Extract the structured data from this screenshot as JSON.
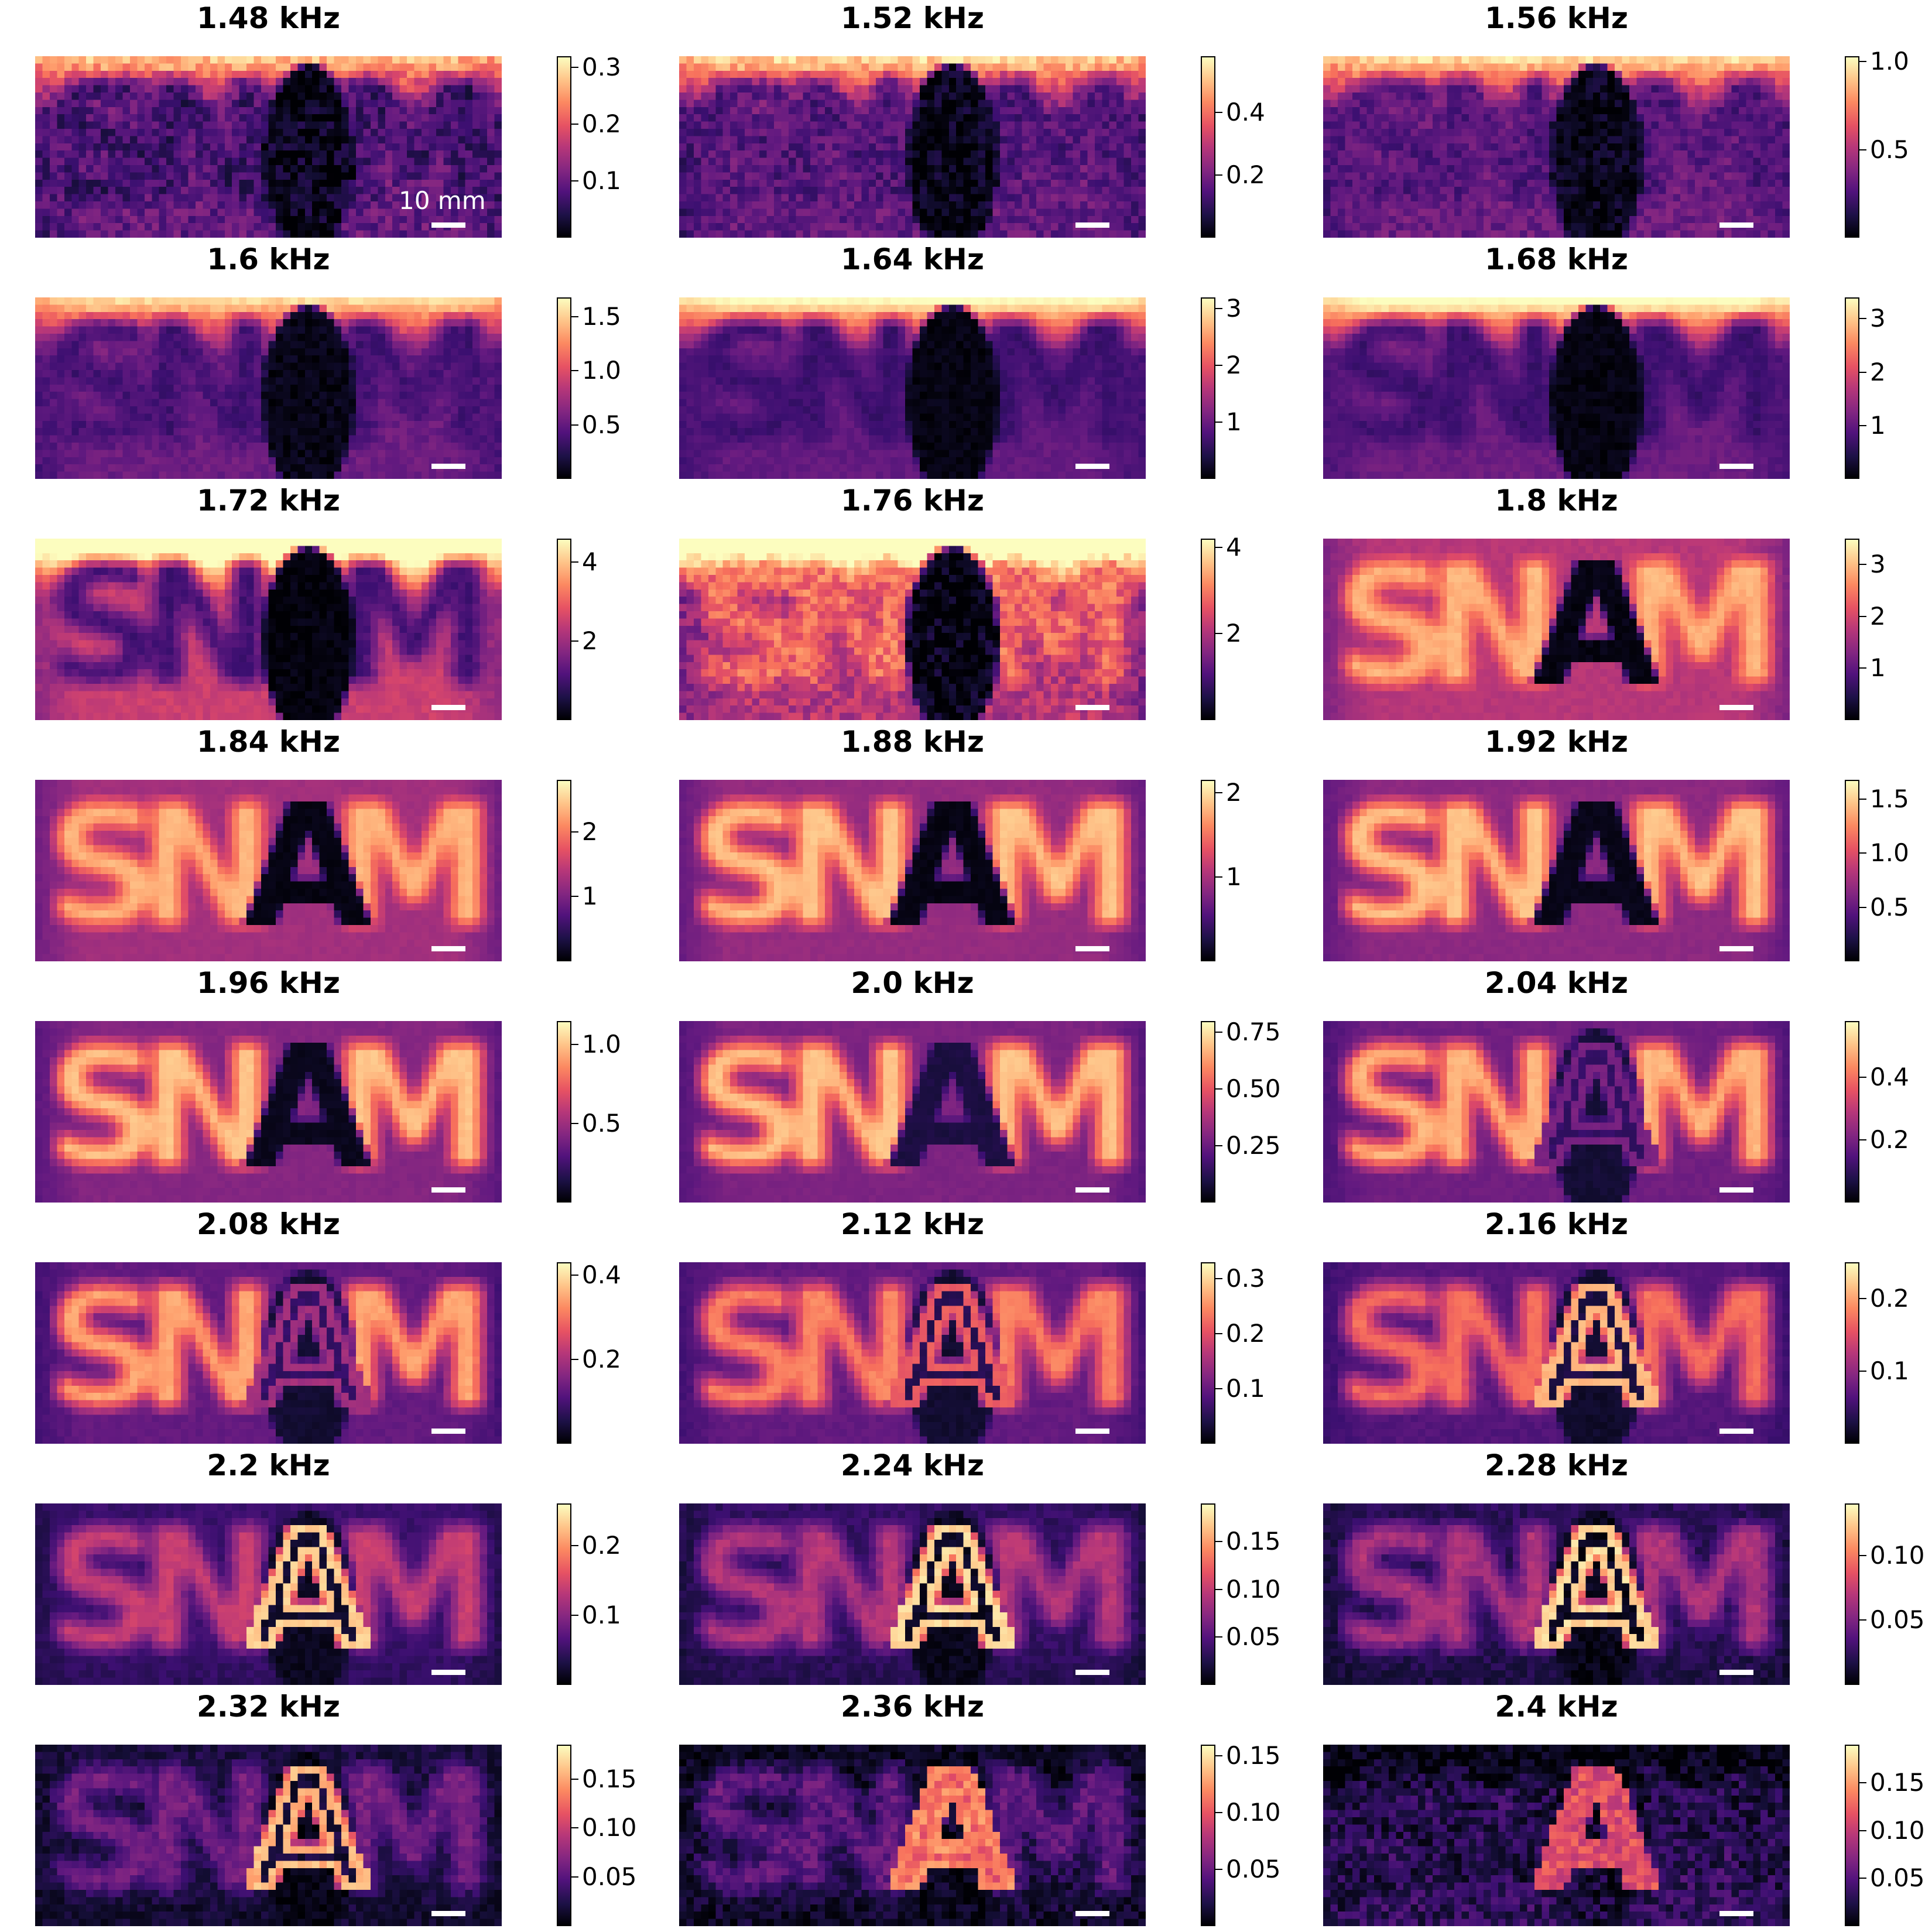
{
  "chart_data": {
    "type": "heatmap",
    "colormap": "magma",
    "grid": false,
    "scale_bar_label": "10 mm",
    "letters": [
      "S",
      "N",
      "A",
      "M"
    ],
    "panels": [
      {
        "title": "1.48 kHz",
        "vmax": 0.32,
        "ticks": [
          {
            "v": 0.1,
            "label": "0.1"
          },
          {
            "v": 0.2,
            "label": "0.2"
          },
          {
            "v": 0.3,
            "label": "0.3"
          }
        ],
        "letters_level": 0.2,
        "a_level": 0.05,
        "a_edge": 0.0,
        "bg_level": 0.3,
        "top_glow": 0.55,
        "bottom_dark": 0.0,
        "noise": 0.35,
        "blur": 1.0,
        "a_shape": "blob",
        "scale_label_visible": true
      },
      {
        "title": "1.52 kHz",
        "vmax": 0.58,
        "ticks": [
          {
            "v": 0.2,
            "label": "0.2"
          },
          {
            "v": 0.4,
            "label": "0.4"
          }
        ],
        "letters_level": 0.25,
        "a_level": 0.05,
        "a_edge": 0.0,
        "bg_level": 0.3,
        "top_glow": 0.6,
        "bottom_dark": 0.0,
        "noise": 0.3,
        "blur": 1.0,
        "a_shape": "blob"
      },
      {
        "title": "1.56 kHz",
        "vmax": 1.03,
        "ticks": [
          {
            "v": 0.5,
            "label": "0.5"
          },
          {
            "v": 1.0,
            "label": "1.0"
          }
        ],
        "letters_level": 0.25,
        "a_level": 0.05,
        "a_edge": 0.0,
        "bg_level": 0.32,
        "top_glow": 0.6,
        "bottom_dark": 0.0,
        "noise": 0.25,
        "blur": 0.9,
        "a_shape": "blob"
      },
      {
        "title": "1.6 kHz",
        "vmax": 1.68,
        "ticks": [
          {
            "v": 0.5,
            "label": "0.5"
          },
          {
            "v": 1.0,
            "label": "1.0"
          },
          {
            "v": 1.5,
            "label": "1.5"
          }
        ],
        "letters_level": 0.22,
        "a_level": 0.04,
        "a_edge": 0.0,
        "bg_level": 0.32,
        "top_glow": 0.6,
        "bottom_dark": 0.0,
        "noise": 0.15,
        "blur": 0.85,
        "a_shape": "blob"
      },
      {
        "title": "1.64 kHz",
        "vmax": 3.2,
        "ticks": [
          {
            "v": 1,
            "label": "1"
          },
          {
            "v": 2,
            "label": "2"
          },
          {
            "v": 3,
            "label": "3"
          }
        ],
        "letters_level": 0.2,
        "a_level": 0.03,
        "a_edge": 0.0,
        "bg_level": 0.3,
        "top_glow": 0.7,
        "bottom_dark": 0.0,
        "noise": 0.1,
        "blur": 0.8,
        "a_shape": "blob"
      },
      {
        "title": "1.68 kHz",
        "vmax": 3.4,
        "ticks": [
          {
            "v": 1,
            "label": "1"
          },
          {
            "v": 2,
            "label": "2"
          },
          {
            "v": 3,
            "label": "3"
          }
        ],
        "letters_level": 0.2,
        "a_level": 0.03,
        "a_edge": 0.0,
        "bg_level": 0.32,
        "top_glow": 0.7,
        "bottom_dark": 0.0,
        "noise": 0.1,
        "blur": 0.8,
        "a_shape": "blob"
      },
      {
        "title": "1.72 kHz",
        "vmax": 4.6,
        "ticks": [
          {
            "v": 2,
            "label": "2"
          },
          {
            "v": 4,
            "label": "4"
          }
        ],
        "letters_level": 0.22,
        "a_level": 0.02,
        "a_edge": 0.0,
        "bg_level": 0.55,
        "top_glow": 0.75,
        "bottom_dark": 0.0,
        "noise": 0.12,
        "blur": 0.75,
        "a_shape": "blob"
      },
      {
        "title": "1.76 kHz",
        "vmax": 4.2,
        "ticks": [
          {
            "v": 2,
            "label": "2"
          },
          {
            "v": 4,
            "label": "4"
          }
        ],
        "letters_level": 0.7,
        "a_level": 0.03,
        "a_edge": 0.0,
        "bg_level": 0.5,
        "top_glow": 0.8,
        "bottom_dark": 0.0,
        "noise": 0.35,
        "blur": 0.7,
        "a_shape": "blob"
      },
      {
        "title": "1.8 kHz",
        "vmax": 3.5,
        "ticks": [
          {
            "v": 1,
            "label": "1"
          },
          {
            "v": 2,
            "label": "2"
          },
          {
            "v": 3,
            "label": "3"
          }
        ],
        "letters_level": 0.85,
        "a_level": 0.03,
        "a_edge": 0.0,
        "bg_level": 0.5,
        "top_glow": 0.0,
        "bottom_dark": 0.0,
        "noise": 0.08,
        "blur": 0.65,
        "a_shape": "solid"
      },
      {
        "title": "1.84 kHz",
        "vmax": 2.8,
        "ticks": [
          {
            "v": 1,
            "label": "1"
          },
          {
            "v": 2,
            "label": "2"
          }
        ],
        "letters_level": 0.85,
        "a_level": 0.03,
        "a_edge": 0.0,
        "bg_level": 0.45,
        "top_glow": 0.0,
        "bottom_dark": 0.0,
        "noise": 0.05,
        "blur": 0.6,
        "a_shape": "solid"
      },
      {
        "title": "1.88 kHz",
        "vmax": 2.15,
        "ticks": [
          {
            "v": 1,
            "label": "1"
          },
          {
            "v": 2,
            "label": "2"
          }
        ],
        "letters_level": 0.88,
        "a_level": 0.03,
        "a_edge": 0.0,
        "bg_level": 0.42,
        "top_glow": 0.0,
        "bottom_dark": 0.0,
        "noise": 0.05,
        "blur": 0.6,
        "a_shape": "solid"
      },
      {
        "title": "1.92 kHz",
        "vmax": 1.68,
        "ticks": [
          {
            "v": 0.5,
            "label": "0.5"
          },
          {
            "v": 1.0,
            "label": "1.0"
          },
          {
            "v": 1.5,
            "label": "1.5"
          }
        ],
        "letters_level": 0.88,
        "a_level": 0.04,
        "a_edge": 0.0,
        "bg_level": 0.4,
        "top_glow": 0.0,
        "bottom_dark": 0.0,
        "noise": 0.05,
        "blur": 0.6,
        "a_shape": "solid"
      },
      {
        "title": "1.96 kHz",
        "vmax": 1.15,
        "ticks": [
          {
            "v": 0.5,
            "label": "0.5"
          },
          {
            "v": 1.0,
            "label": "1.0"
          }
        ],
        "letters_level": 0.88,
        "a_level": 0.05,
        "a_edge": 0.0,
        "bg_level": 0.38,
        "top_glow": 0.0,
        "bottom_dark": 0.0,
        "noise": 0.05,
        "blur": 0.6,
        "a_shape": "solid"
      },
      {
        "title": "2.0 kHz",
        "vmax": 0.8,
        "ticks": [
          {
            "v": 0.25,
            "label": "0.25"
          },
          {
            "v": 0.5,
            "label": "0.50"
          },
          {
            "v": 0.75,
            "label": "0.75"
          }
        ],
        "letters_level": 0.88,
        "a_level": 0.12,
        "a_edge": 0.2,
        "bg_level": 0.36,
        "top_glow": 0.0,
        "bottom_dark": 0.0,
        "noise": 0.05,
        "blur": 0.6,
        "a_shape": "solid"
      },
      {
        "title": "2.04 kHz",
        "vmax": 0.58,
        "ticks": [
          {
            "v": 0.2,
            "label": "0.2"
          },
          {
            "v": 0.4,
            "label": "0.4"
          }
        ],
        "letters_level": 0.85,
        "a_level": 0.18,
        "a_edge": 0.35,
        "bg_level": 0.33,
        "top_glow": 0.0,
        "bottom_dark": 0.0,
        "noise": 0.06,
        "blur": 0.6,
        "a_shape": "outline"
      },
      {
        "title": "2.08 kHz",
        "vmax": 0.43,
        "ticks": [
          {
            "v": 0.2,
            "label": "0.2"
          },
          {
            "v": 0.4,
            "label": "0.4"
          }
        ],
        "letters_level": 0.82,
        "a_level": 0.18,
        "a_edge": 0.45,
        "bg_level": 0.3,
        "top_glow": 0.0,
        "bottom_dark": 0.0,
        "noise": 0.07,
        "blur": 0.6,
        "a_shape": "outline"
      },
      {
        "title": "2.12 kHz",
        "vmax": 0.33,
        "ticks": [
          {
            "v": 0.1,
            "label": "0.1"
          },
          {
            "v": 0.2,
            "label": "0.2"
          },
          {
            "v": 0.3,
            "label": "0.3"
          }
        ],
        "letters_level": 0.75,
        "a_level": 0.15,
        "a_edge": 0.65,
        "bg_level": 0.3,
        "top_glow": 0.0,
        "bottom_dark": 0.0,
        "noise": 0.07,
        "blur": 0.6,
        "a_shape": "outline"
      },
      {
        "title": "2.16 kHz",
        "vmax": 0.25,
        "ticks": [
          {
            "v": 0.1,
            "label": "0.1"
          },
          {
            "v": 0.2,
            "label": "0.2"
          }
        ],
        "letters_level": 0.7,
        "a_level": 0.12,
        "a_edge": 0.85,
        "bg_level": 0.27,
        "top_glow": 0.0,
        "bottom_dark": 0.05,
        "noise": 0.08,
        "blur": 0.6,
        "a_shape": "outline"
      },
      {
        "title": "2.2 kHz",
        "vmax": 0.26,
        "ticks": [
          {
            "v": 0.1,
            "label": "0.1"
          },
          {
            "v": 0.2,
            "label": "0.2"
          }
        ],
        "letters_level": 0.55,
        "a_level": 0.08,
        "a_edge": 0.9,
        "bg_level": 0.2,
        "top_glow": 0.0,
        "bottom_dark": 0.15,
        "noise": 0.1,
        "blur": 0.6,
        "a_shape": "outline"
      },
      {
        "title": "2.24 kHz",
        "vmax": 0.19,
        "ticks": [
          {
            "v": 0.05,
            "label": "0.05"
          },
          {
            "v": 0.1,
            "label": "0.10"
          },
          {
            "v": 0.15,
            "label": "0.15"
          }
        ],
        "letters_level": 0.5,
        "a_level": 0.06,
        "a_edge": 0.92,
        "bg_level": 0.18,
        "top_glow": 0.0,
        "bottom_dark": 0.2,
        "noise": 0.12,
        "blur": 0.6,
        "a_shape": "outline"
      },
      {
        "title": "2.28 kHz",
        "vmax": 0.14,
        "ticks": [
          {
            "v": 0.05,
            "label": "0.05"
          },
          {
            "v": 0.1,
            "label": "0.10"
          }
        ],
        "letters_level": 0.48,
        "a_level": 0.05,
        "a_edge": 0.92,
        "bg_level": 0.16,
        "top_glow": 0.0,
        "bottom_dark": 0.25,
        "noise": 0.15,
        "blur": 0.6,
        "a_shape": "outline"
      },
      {
        "title": "2.32 kHz",
        "vmax": 0.185,
        "ticks": [
          {
            "v": 0.05,
            "label": "0.05"
          },
          {
            "v": 0.1,
            "label": "0.10"
          },
          {
            "v": 0.15,
            "label": "0.15"
          }
        ],
        "letters_level": 0.35,
        "a_level": 0.1,
        "a_edge": 0.85,
        "bg_level": 0.12,
        "top_glow": 0.0,
        "bottom_dark": 0.3,
        "noise": 0.18,
        "blur": 0.65,
        "a_shape": "outline"
      },
      {
        "title": "2.36 kHz",
        "vmax": 0.16,
        "ticks": [
          {
            "v": 0.05,
            "label": "0.05"
          },
          {
            "v": 0.1,
            "label": "0.10"
          },
          {
            "v": 0.15,
            "label": "0.15"
          }
        ],
        "letters_level": 0.3,
        "a_level": 0.65,
        "a_edge": 0.75,
        "bg_level": 0.12,
        "top_glow": -0.2,
        "bottom_dark": 0.4,
        "noise": 0.25,
        "blur": 0.7,
        "a_shape": "filled"
      },
      {
        "title": "2.4 kHz",
        "vmax": 0.19,
        "ticks": [
          {
            "v": 0.05,
            "label": "0.05"
          },
          {
            "v": 0.1,
            "label": "0.10"
          },
          {
            "v": 0.15,
            "label": "0.15"
          }
        ],
        "letters_level": 0.12,
        "a_level": 0.6,
        "a_edge": 0.6,
        "bg_level": 0.18,
        "top_glow": -0.35,
        "bottom_dark": 0.05,
        "noise": 0.35,
        "blur": 0.85,
        "a_shape": "filled"
      }
    ]
  }
}
